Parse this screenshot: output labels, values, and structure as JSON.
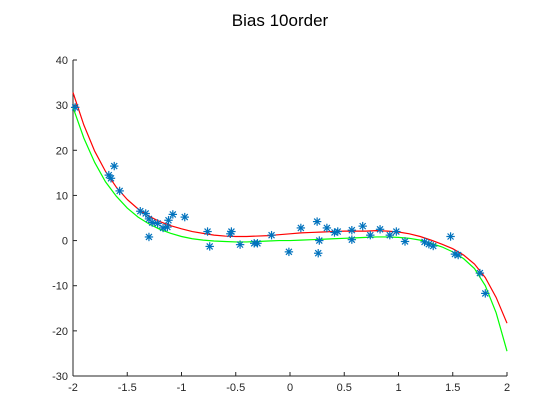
{
  "chart_data": {
    "type": "scatter",
    "title": "Bias 10order",
    "xlabel": "",
    "ylabel": "",
    "xlim": [
      -2,
      2
    ],
    "ylim": [
      -30,
      40
    ],
    "grid": false,
    "xticks": [
      -2,
      -1.5,
      -1,
      -0.5,
      0,
      0.5,
      1,
      1.5,
      2
    ],
    "xtick_labels": [
      "-2",
      "-1.5",
      "-1",
      "-0.5",
      "0",
      "0.5",
      "1",
      "1.5",
      "2"
    ],
    "yticks": [
      -30,
      -20,
      -10,
      0,
      10,
      20,
      30,
      40
    ],
    "ytick_labels": [
      "-30",
      "-20",
      "-10",
      "0",
      "10",
      "20",
      "30",
      "40"
    ],
    "colors": {
      "scatter": "#0072BD",
      "fit": "#FF0000",
      "true": "#00FF00",
      "axis": "#262626"
    },
    "scatter": {
      "marker": "asterisk",
      "x": [
        -1.98,
        -1.67,
        -1.65,
        -1.62,
        -1.57,
        -1.38,
        -1.33,
        -1.3,
        -1.3,
        -1.27,
        -1.22,
        -1.17,
        -1.13,
        -1.12,
        -1.08,
        -0.97,
        -0.76,
        -0.74,
        -0.55,
        -0.54,
        -0.46,
        -0.33,
        -0.3,
        -0.17,
        -0.01,
        0.1,
        0.25,
        0.26,
        0.27,
        0.34,
        0.41,
        0.44,
        0.57,
        0.57,
        0.67,
        0.74,
        0.83,
        0.92,
        0.98,
        1.06,
        1.24,
        1.28,
        1.32,
        1.48,
        1.52,
        1.55,
        1.75,
        1.8
      ],
      "y": [
        29.5,
        14.5,
        13.8,
        16.5,
        11.0,
        6.5,
        6.0,
        4.8,
        0.8,
        4.0,
        3.8,
        2.8,
        3.0,
        4.5,
        5.8,
        5.2,
        2.0,
        -1.3,
        1.5,
        2.0,
        -0.9,
        -0.6,
        -0.6,
        1.2,
        -2.5,
        2.8,
        4.2,
        -2.8,
        0.0,
        2.8,
        1.8,
        2.0,
        2.3,
        0.2,
        3.2,
        1.2,
        2.5,
        1.2,
        2.0,
        -0.2,
        -0.3,
        -0.8,
        -1.2,
        0.9,
        -3.0,
        -3.2,
        -7.2,
        -11.7
      ]
    },
    "lines": [
      {
        "color": "red",
        "x": [
          -2.0,
          -1.9,
          -1.8,
          -1.7,
          -1.6,
          -1.5,
          -1.4,
          -1.3,
          -1.2,
          -1.1,
          -1.0,
          -0.9,
          -0.8,
          -0.7,
          -0.6,
          -0.5,
          -0.4,
          -0.3,
          -0.2,
          -0.1,
          0.0,
          0.1,
          0.2,
          0.3,
          0.4,
          0.5,
          0.6,
          0.7,
          0.8,
          0.9,
          1.0,
          1.1,
          1.2,
          1.3,
          1.4,
          1.5,
          1.6,
          1.7,
          1.8,
          1.9,
          2.0
        ],
        "y": [
          32.8,
          25.6,
          19.8,
          15.3,
          11.8,
          9.1,
          7.0,
          5.4,
          4.2,
          3.3,
          2.6,
          2.0,
          1.6,
          1.2,
          1.0,
          0.9,
          0.9,
          1.0,
          1.1,
          1.3,
          1.5,
          1.7,
          1.8,
          1.9,
          2.0,
          2.1,
          2.1,
          2.1,
          2.2,
          2.1,
          1.9,
          1.5,
          0.9,
          0.1,
          -0.8,
          -1.8,
          -3.2,
          -5.2,
          -8.2,
          -12.6,
          -18.3
        ]
      },
      {
        "color": "green",
        "x": [
          -2.0,
          -1.9,
          -1.8,
          -1.7,
          -1.6,
          -1.5,
          -1.4,
          -1.3,
          -1.2,
          -1.1,
          -1.0,
          -0.9,
          -0.8,
          -0.7,
          -0.6,
          -0.5,
          -0.4,
          -0.3,
          -0.2,
          -0.1,
          0.0,
          0.1,
          0.2,
          0.3,
          0.4,
          0.5,
          0.6,
          0.7,
          0.8,
          0.9,
          1.0,
          1.1,
          1.2,
          1.3,
          1.4,
          1.5,
          1.6,
          1.7,
          1.8,
          1.9,
          2.0
        ],
        "y": [
          29.5,
          22.7,
          17.3,
          13.0,
          9.8,
          7.2,
          5.2,
          3.7,
          2.5,
          1.6,
          0.9,
          0.4,
          0.1,
          -0.1,
          -0.2,
          -0.3,
          -0.3,
          -0.2,
          -0.1,
          0.0,
          0.0,
          0.1,
          0.2,
          0.3,
          0.4,
          0.5,
          0.6,
          0.7,
          0.8,
          0.8,
          0.7,
          0.5,
          0.1,
          -0.6,
          -1.4,
          -2.5,
          -4.0,
          -6.2,
          -10.0,
          -16.0,
          -24.5
        ]
      }
    ]
  }
}
